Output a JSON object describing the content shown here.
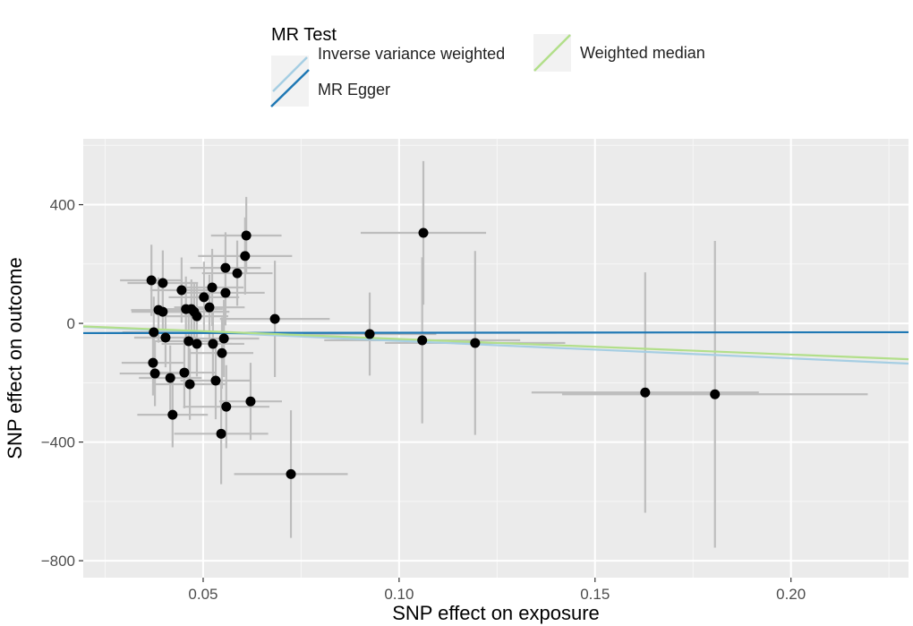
{
  "chart_data": {
    "type": "scatter",
    "xlabel": "SNP effect on exposure",
    "ylabel": "SNP effect on outcome",
    "xlim": [
      0.0194,
      0.23
    ],
    "ylim": [
      -857,
      622
    ],
    "xticks": [
      0.05,
      0.1,
      0.15,
      0.2
    ],
    "xtick_labels": [
      "0.05",
      "0.10",
      "0.15",
      "0.20"
    ],
    "yticks": [
      400,
      0,
      -400,
      -800
    ],
    "ytick_labels": [
      "400",
      "0",
      "−400",
      "−800"
    ],
    "grid": true,
    "legend": {
      "title": "MR Test",
      "placement": "top",
      "entries": [
        "Inverse variance weighted",
        "MR Egger",
        "Weighted median"
      ]
    },
    "lines": [
      {
        "name": "Inverse variance weighted",
        "intercept": 0,
        "slope": -590,
        "color": "#A6CEE3"
      },
      {
        "name": "MR Egger",
        "intercept": -33,
        "slope": 14,
        "color": "#1F78B4"
      },
      {
        "name": "Weighted median",
        "intercept": 0,
        "slope": -526,
        "color": "#B2DF8A"
      }
    ],
    "points": [
      {
        "x": 0.0368,
        "y": 145,
        "xse": 0.008,
        "yse": 120
      },
      {
        "x": 0.0397,
        "y": 136,
        "xse": 0.009,
        "yse": 110
      },
      {
        "x": 0.0445,
        "y": 112,
        "xse": 0.008,
        "yse": 110
      },
      {
        "x": 0.0502,
        "y": 88,
        "xse": 0.009,
        "yse": 120
      },
      {
        "x": 0.0523,
        "y": 121,
        "xse": 0.008,
        "yse": 130
      },
      {
        "x": 0.0557,
        "y": 187,
        "xse": 0.009,
        "yse": 120
      },
      {
        "x": 0.0587,
        "y": 169,
        "xse": 0.009,
        "yse": 110
      },
      {
        "x": 0.0607,
        "y": 227,
        "xse": 0.012,
        "yse": 130
      },
      {
        "x": 0.061,
        "y": 296,
        "xse": 0.009,
        "yse": 130
      },
      {
        "x": 0.0557,
        "y": 103,
        "xse": 0.01,
        "yse": 110
      },
      {
        "x": 0.047,
        "y": 48,
        "xse": 0.008,
        "yse": 100
      },
      {
        "x": 0.0477,
        "y": 39,
        "xse": 0.009,
        "yse": 100
      },
      {
        "x": 0.0484,
        "y": 24,
        "xse": 0.008,
        "yse": 110
      },
      {
        "x": 0.0386,
        "y": 45,
        "xse": 0.007,
        "yse": 110
      },
      {
        "x": 0.0397,
        "y": 39,
        "xse": 0.008,
        "yse": 100
      },
      {
        "x": 0.0456,
        "y": 48,
        "xse": 0.008,
        "yse": 110
      },
      {
        "x": 0.0516,
        "y": 54,
        "xse": 0.009,
        "yse": 110
      },
      {
        "x": 0.0683,
        "y": 15,
        "xse": 0.014,
        "yse": 196
      },
      {
        "x": 0.1062,
        "y": 305,
        "xse": 0.016,
        "yse": 242
      },
      {
        "x": 0.0925,
        "y": -36,
        "xse": 0.017,
        "yse": 140
      },
      {
        "x": 0.1059,
        "y": -57,
        "xse": 0.025,
        "yse": 280
      },
      {
        "x": 0.1194,
        "y": -66,
        "xse": 0.023,
        "yse": 310
      },
      {
        "x": 0.0374,
        "y": -30,
        "xse": 0.008,
        "yse": 120
      },
      {
        "x": 0.0404,
        "y": -48,
        "xse": 0.008,
        "yse": 100
      },
      {
        "x": 0.0463,
        "y": -60,
        "xse": 0.009,
        "yse": 110
      },
      {
        "x": 0.0484,
        "y": -69,
        "xse": 0.009,
        "yse": 110
      },
      {
        "x": 0.0525,
        "y": -69,
        "xse": 0.008,
        "yse": 120
      },
      {
        "x": 0.0553,
        "y": -51,
        "xse": 0.009,
        "yse": 130
      },
      {
        "x": 0.0548,
        "y": -100,
        "xse": 0.008,
        "yse": 120
      },
      {
        "x": 0.0372,
        "y": -133,
        "xse": 0.008,
        "yse": 110
      },
      {
        "x": 0.0377,
        "y": -169,
        "xse": 0.009,
        "yse": 110
      },
      {
        "x": 0.0416,
        "y": -184,
        "xse": 0.008,
        "yse": 110
      },
      {
        "x": 0.0452,
        "y": -166,
        "xse": 0.008,
        "yse": 120
      },
      {
        "x": 0.0466,
        "y": -205,
        "xse": 0.009,
        "yse": 120
      },
      {
        "x": 0.0532,
        "y": -193,
        "xse": 0.009,
        "yse": 130
      },
      {
        "x": 0.0621,
        "y": -263,
        "xse": 0.008,
        "yse": 130
      },
      {
        "x": 0.0559,
        "y": -281,
        "xse": 0.011,
        "yse": 140
      },
      {
        "x": 0.0422,
        "y": -308,
        "xse": 0.009,
        "yse": 110
      },
      {
        "x": 0.0546,
        "y": -372,
        "xse": 0.012,
        "yse": 170
      },
      {
        "x": 0.0724,
        "y": -508,
        "xse": 0.0145,
        "yse": 215
      },
      {
        "x": 0.1628,
        "y": -233,
        "xse": 0.029,
        "yse": 405
      },
      {
        "x": 0.1806,
        "y": -239,
        "xse": 0.039,
        "yse": 517
      }
    ]
  }
}
